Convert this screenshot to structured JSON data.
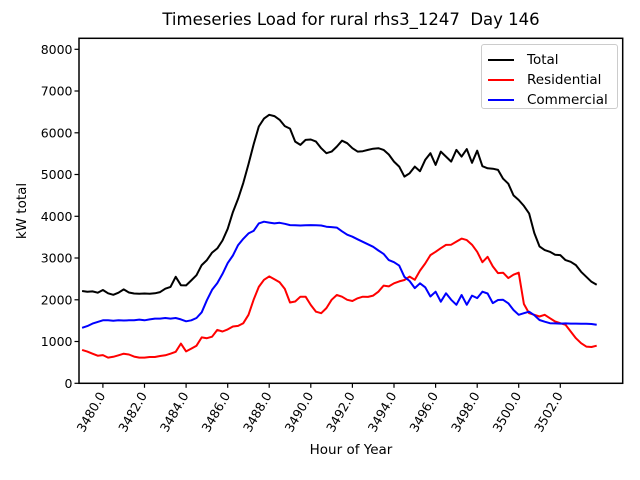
{
  "chart_data": {
    "type": "line",
    "title": "Timeseries Load for rural rhs3_1247  Day 146",
    "xlabel": "Hour of Year",
    "ylabel": "kW total",
    "xlim": [
      3478.85,
      3505.0
    ],
    "ylim": [
      0,
      8263
    ],
    "grid": false,
    "legend_position": "upper right",
    "x_ticks": [
      3480,
      3482,
      3484,
      3486,
      3488,
      3490,
      3492,
      3494,
      3496,
      3498,
      3500,
      3502
    ],
    "x_tick_labels": [
      "3480.0",
      "3482.0",
      "3484.0",
      "3486.0",
      "3488.0",
      "3490.0",
      "3492.0",
      "3494.0",
      "3496.0",
      "3498.0",
      "3500.0",
      "3502.0"
    ],
    "y_ticks": [
      0,
      1000,
      2000,
      3000,
      4000,
      5000,
      6000,
      7000,
      8000
    ],
    "y_tick_labels": [
      "0",
      "1000",
      "2000",
      "3000",
      "4000",
      "5000",
      "6000",
      "7000",
      "8000"
    ],
    "x": [
      3479.0,
      3479.25,
      3479.5,
      3479.75,
      3480.0,
      3480.25,
      3480.5,
      3480.75,
      3481.0,
      3481.25,
      3481.5,
      3481.75,
      3482.0,
      3482.25,
      3482.5,
      3482.75,
      3483.0,
      3483.25,
      3483.5,
      3483.75,
      3484.0,
      3484.25,
      3484.5,
      3484.75,
      3485.0,
      3485.25,
      3485.5,
      3485.75,
      3486.0,
      3486.25,
      3486.5,
      3486.75,
      3487.0,
      3487.25,
      3487.5,
      3487.75,
      3488.0,
      3488.25,
      3488.5,
      3488.75,
      3489.0,
      3489.25,
      3489.5,
      3489.75,
      3490.0,
      3490.25,
      3490.5,
      3490.75,
      3491.0,
      3491.25,
      3491.5,
      3491.75,
      3492.0,
      3492.25,
      3492.5,
      3492.75,
      3493.0,
      3493.25,
      3493.5,
      3493.75,
      3494.0,
      3494.25,
      3494.5,
      3494.75,
      3495.0,
      3495.25,
      3495.5,
      3495.75,
      3496.0,
      3496.25,
      3496.5,
      3496.75,
      3497.0,
      3497.25,
      3497.5,
      3497.75,
      3498.0,
      3498.25,
      3498.5,
      3498.75,
      3499.0,
      3499.25,
      3499.5,
      3499.75,
      3500.0,
      3500.25,
      3500.5,
      3500.75,
      3501.0,
      3501.25,
      3501.5,
      3501.75,
      3502.0,
      3502.25,
      3502.5,
      3502.75,
      3503.0,
      3503.25,
      3503.5,
      3503.75
    ],
    "series": [
      {
        "name": "Total",
        "color": "#000000",
        "values": [
          2210,
          2195,
          2200,
          2170,
          2235,
          2155,
          2120,
          2170,
          2250,
          2175,
          2150,
          2145,
          2150,
          2145,
          2155,
          2185,
          2265,
          2310,
          2550,
          2350,
          2345,
          2465,
          2590,
          2830,
          2950,
          3130,
          3230,
          3420,
          3700,
          4100,
          4420,
          4800,
          5250,
          5720,
          6150,
          6340,
          6430,
          6400,
          6310,
          6160,
          6100,
          5790,
          5710,
          5830,
          5840,
          5790,
          5630,
          5510,
          5550,
          5670,
          5810,
          5750,
          5630,
          5550,
          5560,
          5590,
          5620,
          5630,
          5590,
          5480,
          5310,
          5190,
          4950,
          5030,
          5190,
          5080,
          5350,
          5510,
          5230,
          5550,
          5430,
          5310,
          5590,
          5430,
          5610,
          5280,
          5570,
          5200,
          5150,
          5140,
          5110,
          4900,
          4780,
          4500,
          4390,
          4250,
          4070,
          3600,
          3280,
          3190,
          3150,
          3080,
          3070,
          2950,
          2910,
          2830,
          2670,
          2550,
          2430,
          2360
        ]
      },
      {
        "name": "Residential",
        "color": "#ff0000",
        "values": [
          800,
          760,
          710,
          660,
          675,
          615,
          635,
          670,
          710,
          690,
          640,
          615,
          615,
          630,
          630,
          655,
          670,
          710,
          755,
          950,
          765,
          830,
          900,
          1100,
          1080,
          1115,
          1280,
          1240,
          1290,
          1360,
          1375,
          1440,
          1640,
          2000,
          2310,
          2480,
          2560,
          2490,
          2420,
          2260,
          1935,
          1960,
          2075,
          2075,
          1875,
          1715,
          1680,
          1800,
          2000,
          2115,
          2075,
          2000,
          1970,
          2035,
          2075,
          2070,
          2100,
          2195,
          2340,
          2320,
          2395,
          2440,
          2475,
          2555,
          2480,
          2700,
          2870,
          3070,
          3150,
          3235,
          3315,
          3320,
          3395,
          3465,
          3430,
          3320,
          3150,
          2900,
          3030,
          2800,
          2640,
          2650,
          2520,
          2600,
          2650,
          1900,
          1680,
          1640,
          1600,
          1640,
          1560,
          1480,
          1440,
          1400,
          1240,
          1080,
          960,
          880,
          870,
          900
        ]
      },
      {
        "name": "Commercial",
        "color": "#0000ff",
        "values": [
          1330,
          1370,
          1430,
          1470,
          1510,
          1510,
          1500,
          1510,
          1505,
          1510,
          1510,
          1525,
          1510,
          1530,
          1550,
          1550,
          1565,
          1550,
          1565,
          1530,
          1485,
          1510,
          1565,
          1700,
          1990,
          2240,
          2400,
          2620,
          2880,
          3060,
          3310,
          3460,
          3590,
          3650,
          3830,
          3870,
          3850,
          3830,
          3845,
          3820,
          3790,
          3785,
          3780,
          3785,
          3790,
          3785,
          3780,
          3750,
          3740,
          3730,
          3640,
          3560,
          3510,
          3450,
          3390,
          3330,
          3270,
          3180,
          3100,
          2950,
          2900,
          2820,
          2550,
          2450,
          2280,
          2395,
          2300,
          2080,
          2195,
          1955,
          2155,
          2000,
          1880,
          2115,
          1880,
          2100,
          2040,
          2195,
          2150,
          1920,
          1995,
          2000,
          1915,
          1755,
          1640,
          1680,
          1715,
          1630,
          1515,
          1475,
          1440,
          1435,
          1430,
          1435,
          1430,
          1430,
          1425,
          1425,
          1420,
          1400
        ]
      }
    ],
    "axis_color": "#000000",
    "legend_border_color": "#cccccc"
  }
}
